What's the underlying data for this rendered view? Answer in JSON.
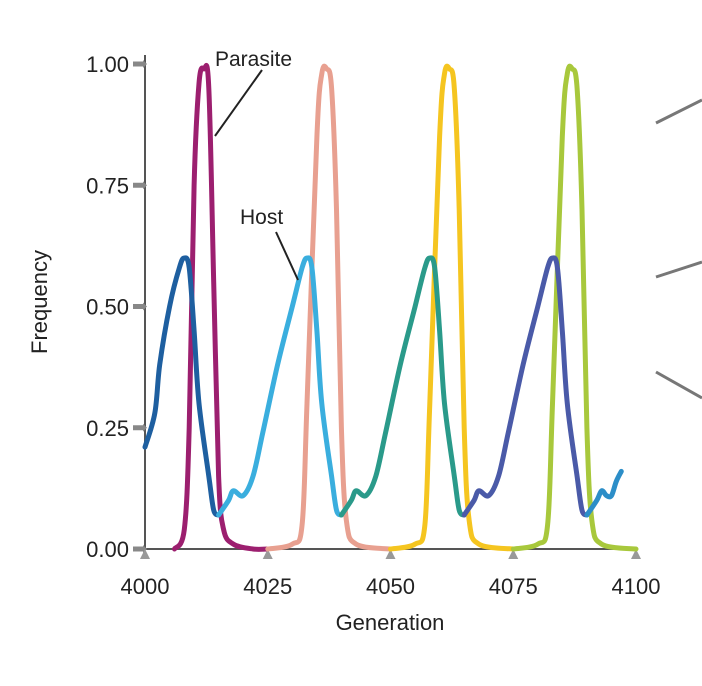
{
  "chart_data": {
    "type": "line",
    "title": "",
    "xlabel": "Generation",
    "ylabel": "Frequency",
    "xlim": [
      4000,
      4100
    ],
    "ylim": [
      0,
      1
    ],
    "x_ticks": [
      4000,
      4025,
      4050,
      4075,
      4100
    ],
    "y_ticks": [
      0,
      0.25,
      0.5,
      0.75,
      1
    ],
    "y_tick_labels": [
      "0.00",
      "0.25",
      "0.50",
      "0.75",
      "1.00"
    ],
    "x_tick_labels": [
      "4000",
      "4025",
      "4050",
      "4075",
      "4100"
    ],
    "grid": false,
    "legend": "none",
    "annotations": [
      {
        "text": "Parasite"
      },
      {
        "text": "Host"
      }
    ],
    "series": [
      {
        "color": "#9c1f6f",
        "points": [
          [
            4006,
            0.0
          ],
          [
            4008,
            0.04
          ],
          [
            4009,
            0.25
          ],
          [
            4010,
            0.75
          ],
          [
            4011,
            0.96
          ],
          [
            4012,
            0.99
          ],
          [
            4013,
            0.95
          ],
          [
            4014,
            0.55
          ],
          [
            4015,
            0.15
          ],
          [
            4016,
            0.04
          ],
          [
            4018,
            0.01
          ],
          [
            4022,
            0.0
          ],
          [
            4025,
            0.0
          ]
        ]
      },
      {
        "color": "#e8a090",
        "points": [
          [
            4025,
            0.0
          ],
          [
            4030,
            0.01
          ],
          [
            4032,
            0.05
          ],
          [
            4033,
            0.3
          ],
          [
            4035,
            0.85
          ],
          [
            4036,
            0.98
          ],
          [
            4037,
            0.99
          ],
          [
            4038,
            0.95
          ],
          [
            4039,
            0.7
          ],
          [
            4040,
            0.25
          ],
          [
            4041,
            0.06
          ],
          [
            4043,
            0.01
          ],
          [
            4050,
            0.0
          ]
        ]
      },
      {
        "color": "#f5c520",
        "points": [
          [
            4050,
            0.0
          ],
          [
            4055,
            0.01
          ],
          [
            4057,
            0.05
          ],
          [
            4058,
            0.3
          ],
          [
            4060,
            0.85
          ],
          [
            4061,
            0.98
          ],
          [
            4062,
            0.99
          ],
          [
            4063,
            0.95
          ],
          [
            4064,
            0.7
          ],
          [
            4065,
            0.25
          ],
          [
            4066,
            0.06
          ],
          [
            4068,
            0.01
          ],
          [
            4075,
            0.0
          ]
        ]
      },
      {
        "color": "#a8c83c",
        "points": [
          [
            4075,
            0.0
          ],
          [
            4080,
            0.01
          ],
          [
            4082,
            0.05
          ],
          [
            4083,
            0.3
          ],
          [
            4085,
            0.85
          ],
          [
            4086,
            0.98
          ],
          [
            4087,
            0.99
          ],
          [
            4088,
            0.95
          ],
          [
            4089,
            0.7
          ],
          [
            4090,
            0.25
          ],
          [
            4091,
            0.06
          ],
          [
            4093,
            0.01
          ],
          [
            4100,
            0.0
          ]
        ]
      },
      {
        "color": "#1e5fa0",
        "points": [
          [
            4000,
            0.21
          ],
          [
            4002,
            0.28
          ],
          [
            4003,
            0.38
          ],
          [
            4005,
            0.5
          ],
          [
            4007,
            0.58
          ],
          [
            4008,
            0.6
          ],
          [
            4009,
            0.58
          ],
          [
            4010,
            0.45
          ],
          [
            4011,
            0.3
          ],
          [
            4013,
            0.15
          ],
          [
            4014,
            0.08
          ],
          [
            4015,
            0.07
          ]
        ]
      },
      {
        "color": "#3aaede",
        "points": [
          [
            4015,
            0.07
          ],
          [
            4017,
            0.1
          ],
          [
            4018,
            0.12
          ],
          [
            4020,
            0.11
          ],
          [
            4022,
            0.15
          ],
          [
            4024,
            0.24
          ],
          [
            4027,
            0.38
          ],
          [
            4030,
            0.5
          ],
          [
            4032,
            0.58
          ],
          [
            4033,
            0.6
          ],
          [
            4034,
            0.58
          ],
          [
            4035,
            0.45
          ],
          [
            4036,
            0.3
          ],
          [
            4038,
            0.15
          ],
          [
            4039,
            0.08
          ],
          [
            4040,
            0.07
          ]
        ]
      },
      {
        "color": "#2a9a8a",
        "points": [
          [
            4040,
            0.07
          ],
          [
            4042,
            0.1
          ],
          [
            4043,
            0.12
          ],
          [
            4045,
            0.11
          ],
          [
            4047,
            0.15
          ],
          [
            4049,
            0.24
          ],
          [
            4052,
            0.38
          ],
          [
            4055,
            0.5
          ],
          [
            4057,
            0.58
          ],
          [
            4058,
            0.6
          ],
          [
            4059,
            0.58
          ],
          [
            4060,
            0.45
          ],
          [
            4061,
            0.3
          ],
          [
            4063,
            0.15
          ],
          [
            4064,
            0.08
          ],
          [
            4065,
            0.07
          ]
        ]
      },
      {
        "color": "#4a5aa8",
        "points": [
          [
            4065,
            0.07
          ],
          [
            4067,
            0.1
          ],
          [
            4068,
            0.12
          ],
          [
            4070,
            0.11
          ],
          [
            4072,
            0.15
          ],
          [
            4074,
            0.24
          ],
          [
            4077,
            0.38
          ],
          [
            4080,
            0.5
          ],
          [
            4082,
            0.58
          ],
          [
            4083,
            0.6
          ],
          [
            4084,
            0.58
          ],
          [
            4085,
            0.45
          ],
          [
            4086,
            0.3
          ],
          [
            4088,
            0.15
          ],
          [
            4089,
            0.08
          ],
          [
            4090,
            0.07
          ]
        ]
      },
      {
        "color": "#2c8ec8",
        "points": [
          [
            4090,
            0.07
          ],
          [
            4092,
            0.1
          ],
          [
            4093,
            0.12
          ],
          [
            4094,
            0.11
          ],
          [
            4095,
            0.11
          ],
          [
            4096,
            0.14
          ],
          [
            4097,
            0.16
          ]
        ]
      }
    ]
  }
}
